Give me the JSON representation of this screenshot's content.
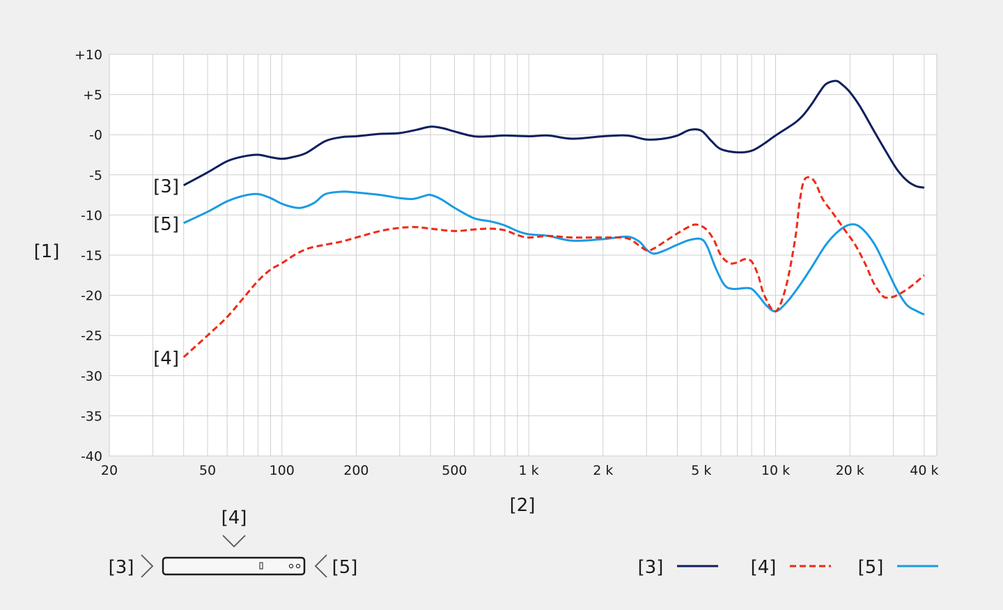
{
  "chart_data": {
    "type": "line",
    "ylabel": "[1]",
    "xlabel": "[2]",
    "x_scale": "log",
    "xlim": [
      20,
      45000
    ],
    "ylim": [
      -40,
      10
    ],
    "grid": true,
    "x_ticks": [
      {
        "value": 20,
        "label": "20"
      },
      {
        "value": 50,
        "label": "50"
      },
      {
        "value": 100,
        "label": "100"
      },
      {
        "value": 200,
        "label": "200"
      },
      {
        "value": 500,
        "label": "500"
      },
      {
        "value": 1000,
        "label": "1 k"
      },
      {
        "value": 2000,
        "label": "2 k"
      },
      {
        "value": 5000,
        "label": "5 k"
      },
      {
        "value": 10000,
        "label": "10 k"
      },
      {
        "value": 20000,
        "label": "20 k"
      },
      {
        "value": 40000,
        "label": "40 k"
      }
    ],
    "y_ticks": [
      {
        "value": 10,
        "label": "+10"
      },
      {
        "value": 5,
        "label": "+5"
      },
      {
        "value": 0,
        "label": "-0"
      },
      {
        "value": -5,
        "label": "-5"
      },
      {
        "value": -10,
        "label": "-10"
      },
      {
        "value": -15,
        "label": "-15"
      },
      {
        "value": -20,
        "label": "-20"
      },
      {
        "value": -25,
        "label": "-25"
      },
      {
        "value": -30,
        "label": "-30"
      },
      {
        "value": -35,
        "label": "-35"
      },
      {
        "value": -40,
        "label": "-40"
      }
    ],
    "legend_position": "bottom-right",
    "series": [
      {
        "name": "[3]",
        "color": "#0d1f5c",
        "dash": "solid",
        "points": [
          [
            40,
            -6.3
          ],
          [
            50,
            -4.7
          ],
          [
            60,
            -3.3
          ],
          [
            70,
            -2.7
          ],
          [
            80,
            -2.5
          ],
          [
            90,
            -2.8
          ],
          [
            100,
            -3.0
          ],
          [
            110,
            -2.8
          ],
          [
            125,
            -2.3
          ],
          [
            150,
            -0.8
          ],
          [
            175,
            -0.3
          ],
          [
            200,
            -0.2
          ],
          [
            250,
            0.1
          ],
          [
            300,
            0.2
          ],
          [
            350,
            0.6
          ],
          [
            400,
            1.0
          ],
          [
            450,
            0.8
          ],
          [
            500,
            0.4
          ],
          [
            600,
            -0.2
          ],
          [
            700,
            -0.2
          ],
          [
            800,
            -0.1
          ],
          [
            1000,
            -0.2
          ],
          [
            1200,
            -0.1
          ],
          [
            1500,
            -0.5
          ],
          [
            2000,
            -0.2
          ],
          [
            2500,
            -0.1
          ],
          [
            3000,
            -0.6
          ],
          [
            3500,
            -0.5
          ],
          [
            4000,
            -0.1
          ],
          [
            4500,
            0.6
          ],
          [
            5000,
            0.5
          ],
          [
            5500,
            -0.8
          ],
          [
            6000,
            -1.8
          ],
          [
            7000,
            -2.2
          ],
          [
            8000,
            -2.0
          ],
          [
            9000,
            -1.1
          ],
          [
            10000,
            -0.1
          ],
          [
            12000,
            1.5
          ],
          [
            13000,
            2.5
          ],
          [
            14000,
            3.8
          ],
          [
            15000,
            5.2
          ],
          [
            16000,
            6.3
          ],
          [
            17500,
            6.7
          ],
          [
            18500,
            6.3
          ],
          [
            20000,
            5.3
          ],
          [
            22000,
            3.5
          ],
          [
            25000,
            0.5
          ],
          [
            28000,
            -2.1
          ],
          [
            31000,
            -4.3
          ],
          [
            34000,
            -5.7
          ],
          [
            37000,
            -6.4
          ],
          [
            40000,
            -6.6
          ]
        ]
      },
      {
        "name": "[4]",
        "color": "#ef2a16",
        "dash": "dashed",
        "points": [
          [
            40,
            -27.7
          ],
          [
            50,
            -25.0
          ],
          [
            60,
            -22.7
          ],
          [
            70,
            -20.3
          ],
          [
            80,
            -18.2
          ],
          [
            90,
            -16.8
          ],
          [
            100,
            -16.0
          ],
          [
            115,
            -14.8
          ],
          [
            130,
            -14.1
          ],
          [
            150,
            -13.7
          ],
          [
            175,
            -13.3
          ],
          [
            200,
            -12.8
          ],
          [
            250,
            -12.0
          ],
          [
            300,
            -11.6
          ],
          [
            350,
            -11.5
          ],
          [
            400,
            -11.7
          ],
          [
            500,
            -12.0
          ],
          [
            600,
            -11.8
          ],
          [
            700,
            -11.7
          ],
          [
            800,
            -11.9
          ],
          [
            900,
            -12.5
          ],
          [
            1000,
            -12.8
          ],
          [
            1200,
            -12.6
          ],
          [
            1500,
            -12.8
          ],
          [
            2000,
            -12.8
          ],
          [
            2500,
            -12.9
          ],
          [
            2800,
            -13.8
          ],
          [
            3000,
            -14.4
          ],
          [
            3200,
            -14.2
          ],
          [
            3600,
            -13.2
          ],
          [
            4000,
            -12.3
          ],
          [
            4500,
            -11.4
          ],
          [
            4800,
            -11.2
          ],
          [
            5200,
            -11.7
          ],
          [
            5600,
            -13.0
          ],
          [
            6000,
            -15.0
          ],
          [
            6500,
            -16.0
          ],
          [
            7000,
            -15.9
          ],
          [
            7500,
            -15.5
          ],
          [
            8000,
            -15.8
          ],
          [
            8500,
            -17.5
          ],
          [
            9000,
            -20.0
          ],
          [
            10000,
            -22.0
          ],
          [
            11000,
            -19.0
          ],
          [
            12000,
            -13.0
          ],
          [
            12500,
            -8.5
          ],
          [
            13000,
            -5.8
          ],
          [
            13700,
            -5.3
          ],
          [
            14500,
            -6.0
          ],
          [
            15500,
            -8.0
          ],
          [
            17000,
            -9.7
          ],
          [
            19000,
            -11.8
          ],
          [
            21000,
            -13.7
          ],
          [
            23000,
            -16.0
          ],
          [
            25000,
            -18.5
          ],
          [
            27000,
            -20.0
          ],
          [
            28500,
            -20.3
          ],
          [
            31000,
            -20.0
          ],
          [
            35000,
            -19.0
          ],
          [
            40000,
            -17.5
          ]
        ]
      },
      {
        "name": "[5]",
        "color": "#1a9be2",
        "dash": "solid",
        "points": [
          [
            40,
            -11.0
          ],
          [
            50,
            -9.6
          ],
          [
            60,
            -8.3
          ],
          [
            70,
            -7.6
          ],
          [
            80,
            -7.4
          ],
          [
            90,
            -7.9
          ],
          [
            100,
            -8.6
          ],
          [
            110,
            -9.0
          ],
          [
            120,
            -9.1
          ],
          [
            135,
            -8.5
          ],
          [
            150,
            -7.4
          ],
          [
            175,
            -7.1
          ],
          [
            200,
            -7.2
          ],
          [
            250,
            -7.5
          ],
          [
            300,
            -7.9
          ],
          [
            340,
            -8.0
          ],
          [
            380,
            -7.6
          ],
          [
            400,
            -7.5
          ],
          [
            440,
            -8.0
          ],
          [
            500,
            -9.1
          ],
          [
            600,
            -10.4
          ],
          [
            700,
            -10.8
          ],
          [
            800,
            -11.3
          ],
          [
            900,
            -12.0
          ],
          [
            1000,
            -12.4
          ],
          [
            1200,
            -12.6
          ],
          [
            1500,
            -13.2
          ],
          [
            2000,
            -13.0
          ],
          [
            2500,
            -12.7
          ],
          [
            2800,
            -13.3
          ],
          [
            3000,
            -14.3
          ],
          [
            3200,
            -14.8
          ],
          [
            3500,
            -14.5
          ],
          [
            4000,
            -13.7
          ],
          [
            4500,
            -13.1
          ],
          [
            5000,
            -13.0
          ],
          [
            5300,
            -14.0
          ],
          [
            5700,
            -16.5
          ],
          [
            6200,
            -18.7
          ],
          [
            6700,
            -19.2
          ],
          [
            7500,
            -19.1
          ],
          [
            8000,
            -19.2
          ],
          [
            8500,
            -20.0
          ],
          [
            9200,
            -21.3
          ],
          [
            10000,
            -22.0
          ],
          [
            11000,
            -21.0
          ],
          [
            12500,
            -18.8
          ],
          [
            14000,
            -16.5
          ],
          [
            16000,
            -13.7
          ],
          [
            18000,
            -12.0
          ],
          [
            20000,
            -11.2
          ],
          [
            22000,
            -11.5
          ],
          [
            25000,
            -13.5
          ],
          [
            28000,
            -16.5
          ],
          [
            31000,
            -19.3
          ],
          [
            34000,
            -21.2
          ],
          [
            37000,
            -21.9
          ],
          [
            40000,
            -22.4
          ]
        ]
      }
    ],
    "line_labels": [
      "[3]",
      "[4]",
      "[5]"
    ],
    "legend": [
      {
        "label": "[3]",
        "color": "#0d1f5c",
        "dash": "solid"
      },
      {
        "label": "[4]",
        "color": "#ef2a16",
        "dash": "dashed"
      },
      {
        "label": "[5]",
        "color": "#1a9be2",
        "dash": "solid"
      }
    ],
    "device_diagram": {
      "left_label": "[3]",
      "top_label": "[4]",
      "right_label": "[5]"
    }
  }
}
